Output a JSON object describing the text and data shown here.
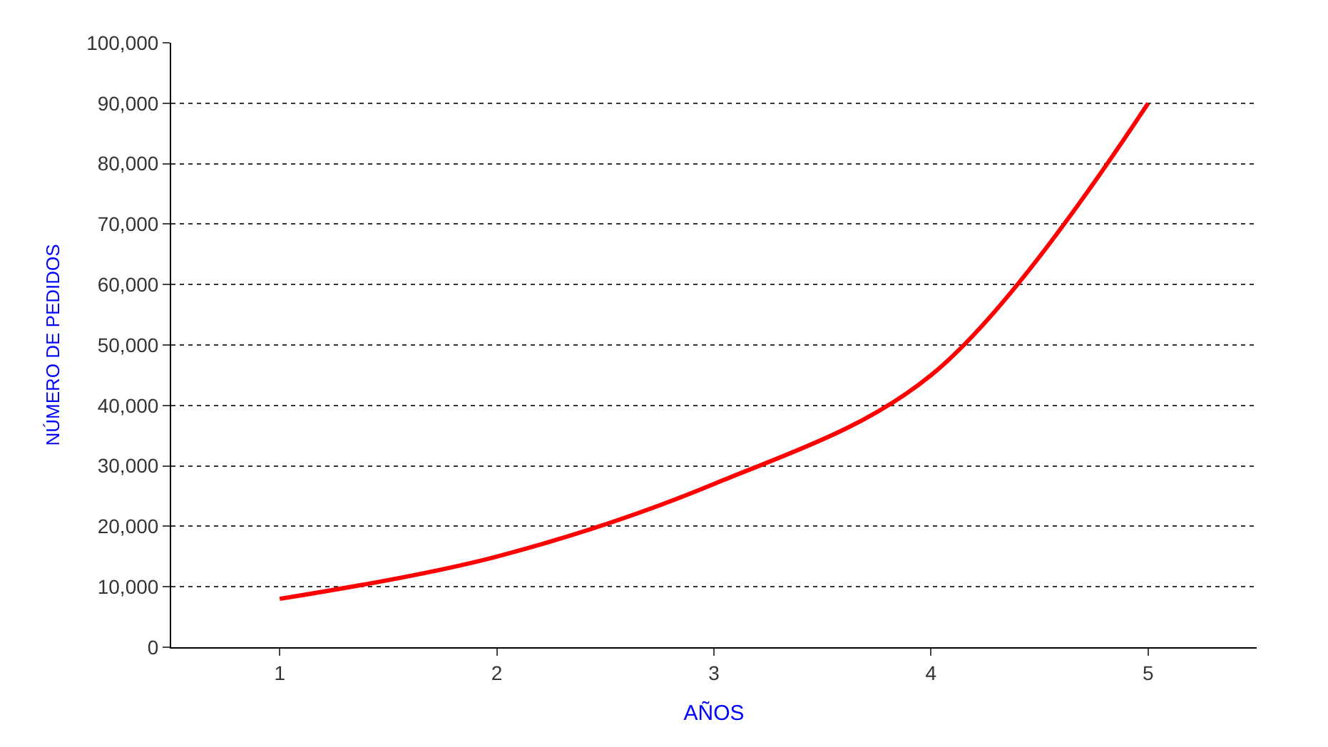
{
  "chart_data": {
    "type": "line",
    "xlabel": "AÑOS",
    "ylabel": "NÚMERO DE PEDIDOS",
    "categories": [
      "1",
      "2",
      "3",
      "4",
      "5"
    ],
    "series": [
      {
        "color": "#ff0000",
        "values": [
          8000,
          15000,
          27000,
          45000,
          90000
        ]
      }
    ],
    "ylim": [
      0,
      100000
    ],
    "yticks": [
      {
        "value": 0,
        "label": "0"
      },
      {
        "value": 10000,
        "label": "10,000"
      },
      {
        "value": 20000,
        "label": "20,000"
      },
      {
        "value": 30000,
        "label": "30,000"
      },
      {
        "value": 40000,
        "label": "40,000"
      },
      {
        "value": 50000,
        "label": "50,000"
      },
      {
        "value": 60000,
        "label": "60,000"
      },
      {
        "value": 70000,
        "label": "70,000"
      },
      {
        "value": 80000,
        "label": "80,000"
      },
      {
        "value": 90000,
        "label": "90,000"
      },
      {
        "value": 100000,
        "label": "100,000"
      }
    ],
    "grid": "y",
    "marker": "none",
    "line_style": "solid"
  }
}
